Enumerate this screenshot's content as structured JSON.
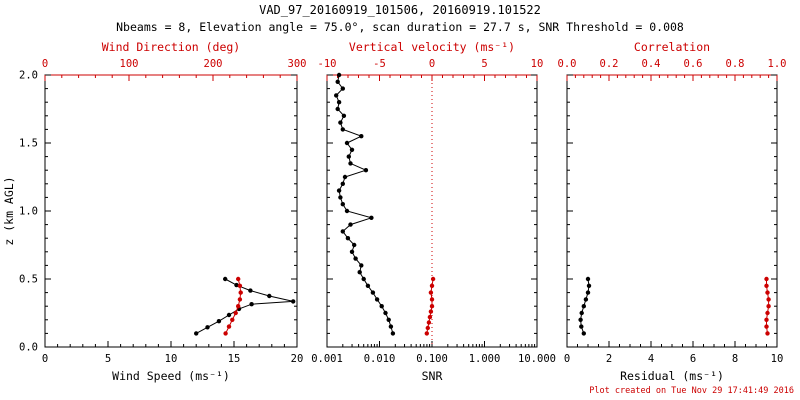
{
  "header": {
    "title": "VAD_97_20160919_101506, 20160919.101522",
    "subtitle": "Nbeams = 8, Elevation angle = 75.0°, scan duration = 27.7 s, SNR Threshold = 0.008"
  },
  "footer": {
    "created": "Plot created on Tue Nov 29 17:41:49 2016"
  },
  "colors": {
    "axis_black": "#000000",
    "accent_red": "#cc0000"
  },
  "chart_data": [
    {
      "type": "line",
      "name": "wind-speed-direction-panel",
      "y_axis": {
        "label": "z (km AGL)",
        "range": [
          0,
          2
        ],
        "ticks": [
          0,
          0.5,
          1,
          1.5,
          2
        ],
        "tick_labels": [
          "0.0",
          "0.5",
          "1.0",
          "1.5",
          "2.0"
        ],
        "show_labels": true,
        "minor": 5
      },
      "bottom_axis": {
        "label": "Wind Speed (ms⁻¹)",
        "scale": "linear",
        "range": [
          0,
          20
        ],
        "ticks": [
          0,
          5,
          10,
          15,
          20
        ],
        "tick_labels": [
          "0",
          "5",
          "10",
          "15",
          "20"
        ],
        "minor": 5
      },
      "top_axis": {
        "label": "Wind Direction (deg)",
        "scale": "linear",
        "range": [
          0,
          300
        ],
        "ticks": [
          0,
          100,
          200,
          300
        ],
        "tick_labels": [
          "0",
          "100",
          "200",
          "300"
        ],
        "minor": 5
      },
      "series": [
        {
          "name": "wind-speed",
          "axis": "bottom",
          "color": "black",
          "points": [
            [
              12.0,
              0.1
            ],
            [
              12.9,
              0.145
            ],
            [
              13.8,
              0.19
            ],
            [
              14.6,
              0.235
            ],
            [
              15.4,
              0.28
            ],
            [
              16.4,
              0.315
            ],
            [
              19.7,
              0.335
            ],
            [
              17.8,
              0.375
            ],
            [
              16.3,
              0.415
            ],
            [
              15.2,
              0.455
            ],
            [
              14.3,
              0.5
            ]
          ]
        },
        {
          "name": "wind-direction",
          "axis": "top",
          "color": "red",
          "points": [
            [
              215,
              0.1
            ],
            [
              219,
              0.15
            ],
            [
              223,
              0.2
            ],
            [
              227,
              0.25
            ],
            [
              230,
              0.3
            ],
            [
              232,
              0.35
            ],
            [
              233,
              0.4
            ],
            [
              232,
              0.45
            ],
            [
              230,
              0.5
            ]
          ]
        }
      ]
    },
    {
      "type": "line",
      "name": "snr-vertical-velocity-panel",
      "y_axis": {
        "range": [
          0,
          2
        ],
        "ticks": [
          0,
          0.5,
          1,
          1.5,
          2
        ],
        "show_labels": false,
        "minor": 5
      },
      "bottom_axis": {
        "label": "SNR",
        "scale": "log",
        "range": [
          0.001,
          10
        ],
        "ticks": [
          0.001,
          0.01,
          0.1,
          1,
          10
        ],
        "tick_labels": [
          "0.001",
          "0.010",
          "0.100",
          "1.000",
          "10.000"
        ],
        "minor": "log"
      },
      "top_axis": {
        "label": "Vertical velocity (ms⁻¹)",
        "scale": "linear",
        "range": [
          -10,
          10
        ],
        "ticks": [
          -10,
          -5,
          0,
          5,
          10
        ],
        "tick_labels": [
          "-10",
          "-5",
          "0",
          "5",
          "10"
        ],
        "minor": 5
      },
      "ref_line": {
        "axis": "top",
        "value": 0,
        "style": "dotted",
        "color": "red"
      },
      "series": [
        {
          "name": "snr-profile",
          "axis": "bottom",
          "color": "black",
          "points": [
            [
              0.018,
              0.1
            ],
            [
              0.0165,
              0.15
            ],
            [
              0.015,
              0.2
            ],
            [
              0.013,
              0.25
            ],
            [
              0.011,
              0.3
            ],
            [
              0.009,
              0.35
            ],
            [
              0.0075,
              0.4
            ],
            [
              0.006,
              0.45
            ],
            [
              0.005,
              0.5
            ],
            [
              0.0042,
              0.55
            ],
            [
              0.0045,
              0.6
            ],
            [
              0.0035,
              0.65
            ],
            [
              0.003,
              0.7
            ],
            [
              0.0033,
              0.75
            ],
            [
              0.0025,
              0.8
            ],
            [
              0.002,
              0.85
            ],
            [
              0.0028,
              0.9
            ],
            [
              0.007,
              0.95
            ],
            [
              0.0024,
              1.0
            ],
            [
              0.002,
              1.05
            ],
            [
              0.0018,
              1.1
            ],
            [
              0.0017,
              1.15
            ],
            [
              0.002,
              1.2
            ],
            [
              0.0022,
              1.25
            ],
            [
              0.0055,
              1.3
            ],
            [
              0.0028,
              1.35
            ],
            [
              0.0026,
              1.4
            ],
            [
              0.003,
              1.45
            ],
            [
              0.0024,
              1.5
            ],
            [
              0.0045,
              1.55
            ],
            [
              0.002,
              1.6
            ],
            [
              0.0018,
              1.65
            ],
            [
              0.0021,
              1.7
            ],
            [
              0.0016,
              1.75
            ],
            [
              0.0017,
              1.8
            ],
            [
              0.0015,
              1.85
            ],
            [
              0.002,
              1.9
            ],
            [
              0.0016,
              1.95
            ],
            [
              0.0017,
              2.0
            ]
          ]
        },
        {
          "name": "vertical-velocity",
          "axis": "top",
          "color": "red",
          "points": [
            [
              -0.5,
              0.1
            ],
            [
              -0.4,
              0.14
            ],
            [
              -0.3,
              0.18
            ],
            [
              -0.2,
              0.22
            ],
            [
              -0.1,
              0.26
            ],
            [
              0.0,
              0.3
            ],
            [
              0.0,
              0.35
            ],
            [
              -0.1,
              0.4
            ],
            [
              0.0,
              0.45
            ],
            [
              0.1,
              0.5
            ]
          ]
        }
      ]
    },
    {
      "type": "line",
      "name": "residual-correlation-panel",
      "y_axis": {
        "range": [
          0,
          2
        ],
        "ticks": [
          0,
          0.5,
          1,
          1.5,
          2
        ],
        "show_labels": false,
        "minor": 5
      },
      "bottom_axis": {
        "label": "Residual (ms⁻¹)",
        "scale": "linear",
        "range": [
          0,
          10
        ],
        "ticks": [
          0,
          2,
          4,
          6,
          8,
          10
        ],
        "tick_labels": [
          "0",
          "2",
          "4",
          "6",
          "8",
          "10"
        ],
        "minor": 4
      },
      "top_axis": {
        "label": "Correlation",
        "scale": "linear",
        "range": [
          0,
          1
        ],
        "ticks": [
          0,
          0.2,
          0.4,
          0.6,
          0.8,
          1.0
        ],
        "tick_labels": [
          "0.0",
          "0.2",
          "0.4",
          "0.6",
          "0.8",
          "1.0"
        ],
        "minor": 5
      },
      "series": [
        {
          "name": "residual",
          "axis": "bottom",
          "color": "black",
          "points": [
            [
              0.8,
              0.1
            ],
            [
              0.68,
              0.15
            ],
            [
              0.65,
              0.2
            ],
            [
              0.7,
              0.25
            ],
            [
              0.8,
              0.3
            ],
            [
              0.9,
              0.35
            ],
            [
              1.0,
              0.4
            ],
            [
              1.05,
              0.45
            ],
            [
              1.0,
              0.5
            ]
          ]
        },
        {
          "name": "correlation",
          "axis": "top",
          "color": "red",
          "points": [
            [
              0.955,
              0.1
            ],
            [
              0.95,
              0.15
            ],
            [
              0.95,
              0.2
            ],
            [
              0.955,
              0.25
            ],
            [
              0.96,
              0.3
            ],
            [
              0.96,
              0.35
            ],
            [
              0.955,
              0.4
            ],
            [
              0.95,
              0.45
            ],
            [
              0.95,
              0.5
            ]
          ]
        }
      ]
    }
  ]
}
